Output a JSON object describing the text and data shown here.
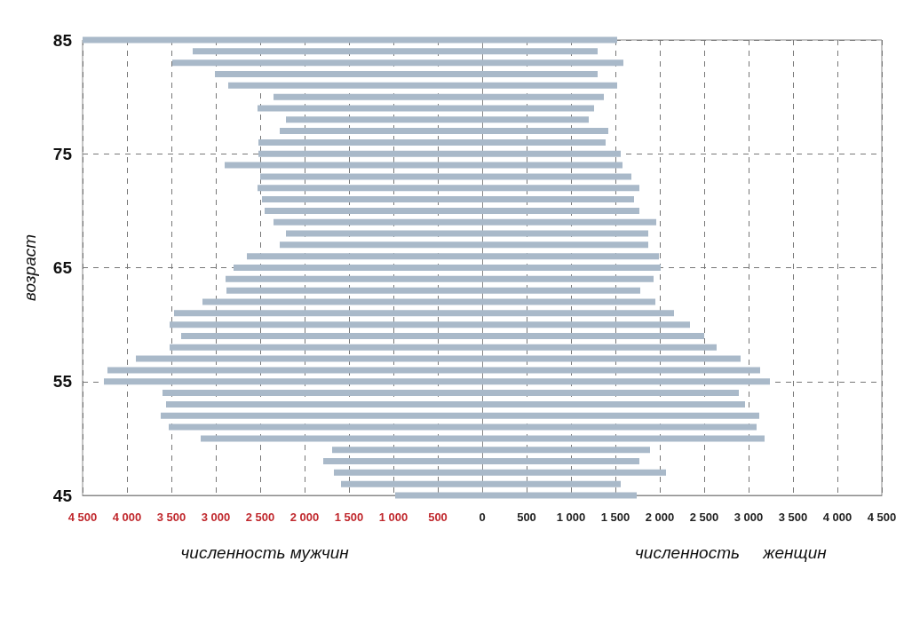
{
  "chart_data": {
    "type": "bar",
    "orientation": "horizontal",
    "ylabel": "возраст",
    "annotations": [
      "численность мужчин",
      "численность     женщин"
    ],
    "categories": [
      "85",
      null,
      null,
      null,
      null,
      null,
      null,
      null,
      null,
      null,
      "75",
      null,
      null,
      null,
      null,
      null,
      null,
      null,
      null,
      null,
      "65",
      null,
      null,
      null,
      null,
      null,
      null,
      null,
      null,
      null,
      "55",
      null,
      null,
      null,
      null,
      null,
      null,
      null,
      null,
      null,
      "45"
    ],
    "series": [
      {
        "color": "#a9b9c9",
        "values": [
          -4500,
          -3260,
          -3490,
          -3010,
          -2860,
          -2350,
          -2530,
          -2210,
          -2280,
          -2520,
          -2520,
          -2900,
          -2500,
          -2530,
          -2480,
          -2450,
          -2350,
          -2210,
          -2280,
          -2650,
          -2800,
          -2890,
          -2880,
          -3150,
          -3470,
          -3520,
          -3390,
          -3520,
          -3900,
          -4220,
          -4260,
          -3600,
          -3560,
          -3620,
          -3530,
          -3170,
          -1690,
          -1790,
          -1670,
          -1590,
          -980
        ]
      },
      {
        "color": "#a9b9c9",
        "values": [
          1520,
          1300,
          1590,
          1300,
          1520,
          1370,
          1260,
          1200,
          1420,
          1390,
          1560,
          1580,
          1680,
          1770,
          1710,
          1770,
          1960,
          1870,
          1870,
          1990,
          2010,
          1930,
          1780,
          1950,
          2160,
          2340,
          2500,
          2640,
          2910,
          3130,
          3240,
          2890,
          2960,
          3120,
          3090,
          3180,
          1890,
          1770,
          2070,
          1560,
          1740
        ]
      }
    ],
    "xlim": [
      -4500,
      4500
    ],
    "xticks": [
      {
        "value": -4500,
        "label": "4 500"
      },
      {
        "value": -4000,
        "label": "4 000"
      },
      {
        "value": -3500,
        "label": "3 500"
      },
      {
        "value": -3000,
        "label": "3 000"
      },
      {
        "value": -2500,
        "label": "2 500"
      },
      {
        "value": -2000,
        "label": "2 000"
      },
      {
        "value": -1500,
        "label": "1 500"
      },
      {
        "value": -1000,
        "label": "1 000"
      },
      {
        "value": -500,
        "label": "500"
      },
      0,
      500,
      {
        "value": 1000,
        "label": "1 000"
      },
      {
        "value": 1500,
        "label": "1 500"
      },
      {
        "value": 2000,
        "label": "2 000"
      },
      {
        "value": 2500,
        "label": "2 500"
      },
      {
        "value": 3000,
        "label": "3 000"
      },
      {
        "value": 3500,
        "label": "3 500"
      },
      {
        "value": 4000,
        "label": "4 000"
      },
      {
        "value": 4500,
        "label": "4 500"
      }
    ],
    "stacked": true,
    "grid": true
  }
}
